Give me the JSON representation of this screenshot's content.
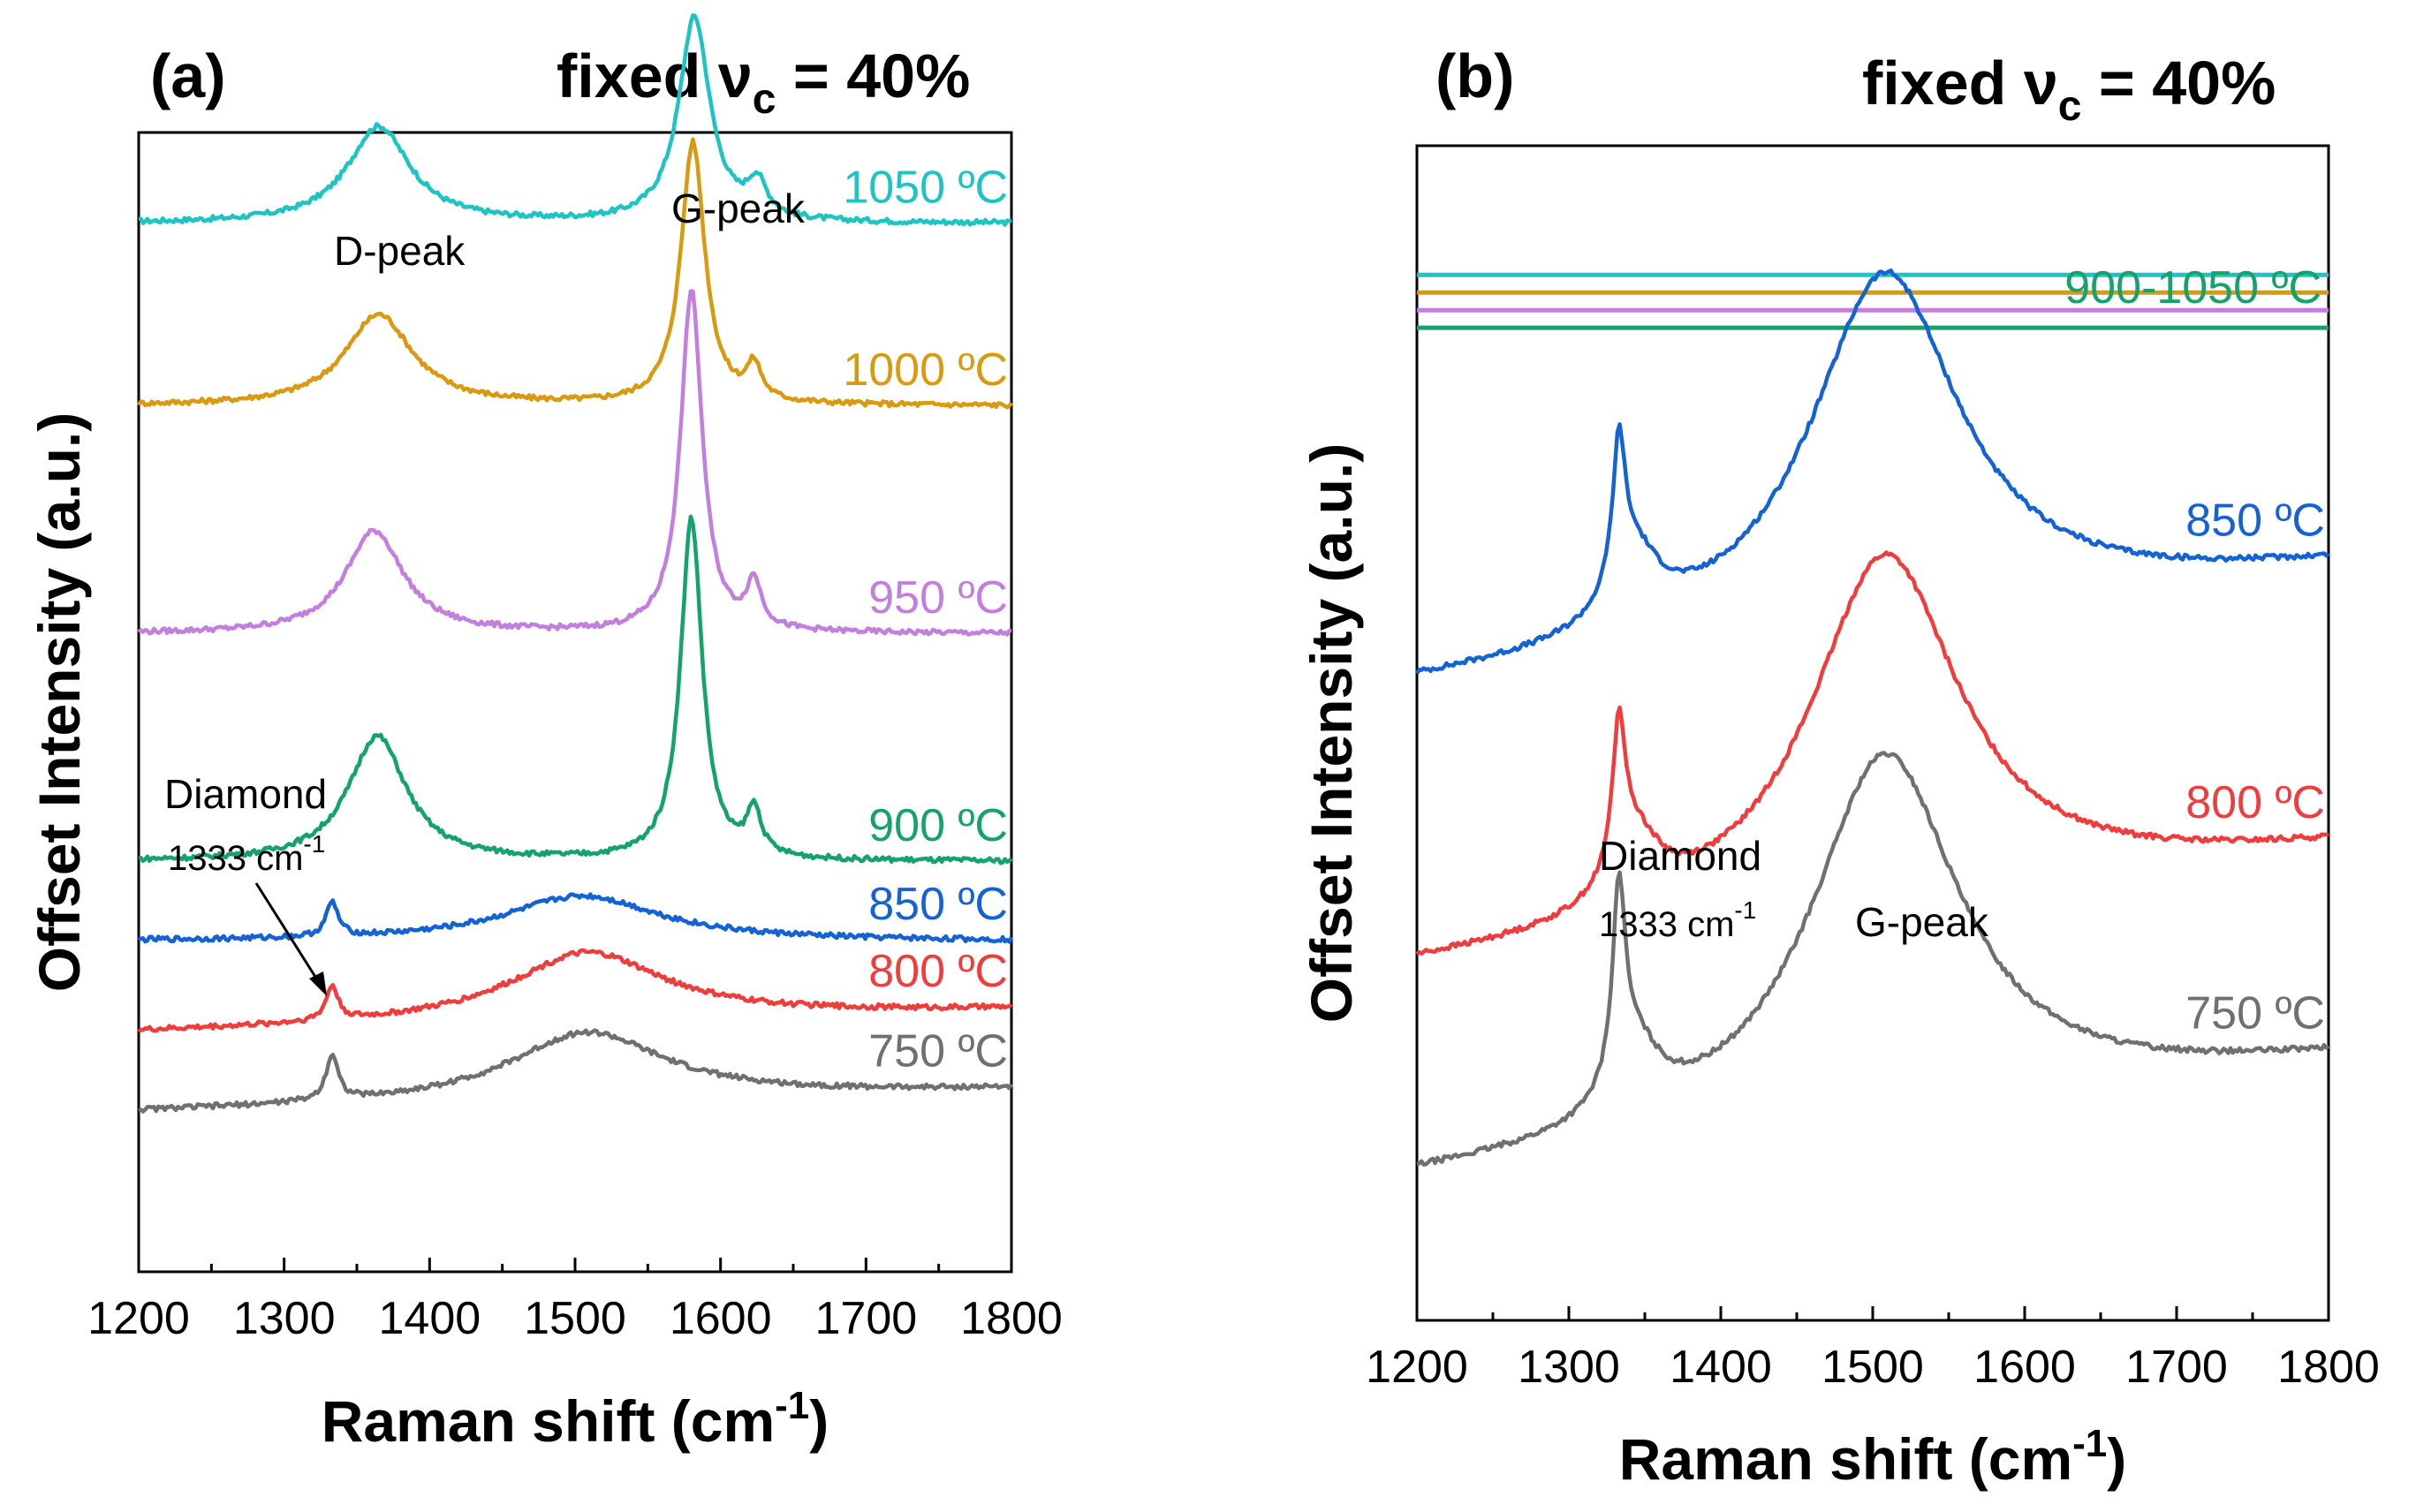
{
  "chart_data": [
    {
      "type": "line",
      "panel": "(a)",
      "condition": {
        "text": "fixed ν",
        "sub": "c",
        "tail": " = 40%"
      },
      "xlabel": {
        "text": "Raman shift (cm",
        "sup": "-1",
        "tail": ")"
      },
      "ylabel": "Offset Intensity (a.u.)",
      "xlim": [
        1200,
        1800
      ],
      "xticks": [
        "1200",
        "1300",
        "1400",
        "1500",
        "1600",
        "1700",
        "1800"
      ],
      "annotations": {
        "d_peak": "D-peak",
        "g_peak": "G-peak",
        "diamond": "Diamond",
        "diamond_pos": {
          "text": "1333 cm",
          "sup": "-1"
        }
      },
      "series": [
        {
          "name": "1050 °C",
          "label": "1050 ºC",
          "color": "#1cc4c4",
          "offset": 92,
          "baseline": 0,
          "peaks": [
            [
              1365,
              8.5,
              26
            ],
            [
              1582,
              18,
              13
            ],
            [
              1625,
              3,
              8
            ]
          ]
        },
        {
          "name": "1000 °C",
          "label": "1000 ºC",
          "color": "#d99a10",
          "offset": 76,
          "baseline": 0,
          "peaks": [
            [
              1365,
              8,
              28
            ],
            [
              1581,
              23,
              10
            ],
            [
              1623,
              3,
              6
            ]
          ]
        },
        {
          "name": "950 °C",
          "label": "950 ºC",
          "color": "#c47ee0",
          "offset": 56,
          "baseline": 0,
          "peaks": [
            [
              1362,
              9,
              24
            ],
            [
              1580,
              30,
              9
            ],
            [
              1623,
              4,
              6
            ]
          ]
        },
        {
          "name": "900 °C",
          "label": "900 ºC",
          "color": "#14a36a",
          "offset": 36,
          "baseline": 0,
          "peaks": [
            [
              1364,
              11,
              24
            ],
            [
              1580,
              30,
              9
            ],
            [
              1623,
              4,
              6
            ]
          ]
        },
        {
          "name": "850 °C",
          "label": "850 ºC",
          "color": "#1463d6",
          "offset": 29,
          "baseline": 0,
          "peaks": [
            [
              1333,
              3,
              5
            ],
            [
              1505,
              4,
              65
            ]
          ]
        },
        {
          "name": "800 °C",
          "label": "800 ºC",
          "color": "#f23c3c",
          "offset": 21,
          "baseline": 2,
          "peaks": [
            [
              1333,
              3,
              5
            ],
            [
              1508,
              6,
              65
            ]
          ]
        },
        {
          "name": "750 °C",
          "label": "750 ºC",
          "color": "#707070",
          "offset": 14,
          "baseline": 2,
          "peaks": [
            [
              1333,
              4,
              5
            ],
            [
              1508,
              6,
              65
            ]
          ]
        }
      ]
    },
    {
      "type": "line",
      "panel": "(b)",
      "condition": {
        "text": "fixed ν",
        "sub": "c",
        "tail": " = 40%"
      },
      "xlabel": {
        "text": "Raman shift (cm",
        "sup": "-1",
        "tail": ")"
      },
      "ylabel": "Offset Intensity (a.u.)",
      "xlim": [
        1200,
        1800
      ],
      "xticks": [
        "1200",
        "1300",
        "1400",
        "1500",
        "1600",
        "1700",
        "1800"
      ],
      "annotations": {
        "diamond": "Diamond",
        "diamond_pos": {
          "text": "1333 cm",
          "sup": "-1"
        },
        "g_peak": "G-peak",
        "flat_label": "900-1050 ºC"
      },
      "flat_lines": [
        {
          "name": "1050 °C",
          "color": "#1cc4c4",
          "level": 89
        },
        {
          "name": "1000 °C",
          "color": "#d99a10",
          "level": 87.5
        },
        {
          "name": "950 °C",
          "color": "#c47ee0",
          "level": 86
        },
        {
          "name": "900 °C",
          "color": "#14a36a",
          "level": 84.5
        }
      ],
      "series": [
        {
          "name": "850 °C",
          "label": "850 ºC",
          "color": "#1463d6",
          "offset": 54,
          "baseline": 10,
          "peaks": [
            [
              1333,
              12,
              5
            ],
            [
              1343,
              6,
              20
            ],
            [
              1508,
              30,
              60
            ]
          ]
        },
        {
          "name": "800 °C",
          "label": "800 ºC",
          "color": "#f23c3c",
          "offset": 30,
          "baseline": 10,
          "peaks": [
            [
              1333,
              12,
              5
            ],
            [
              1343,
              6,
              20
            ],
            [
              1508,
              30,
              60
            ]
          ]
        },
        {
          "name": "750 °C",
          "label": "750 ºC",
          "color": "#707070",
          "offset": 12,
          "baseline": 10,
          "peaks": [
            [
              1333,
              16,
              5
            ],
            [
              1343,
              6,
              20
            ],
            [
              1508,
              31,
              60
            ]
          ]
        }
      ]
    }
  ]
}
